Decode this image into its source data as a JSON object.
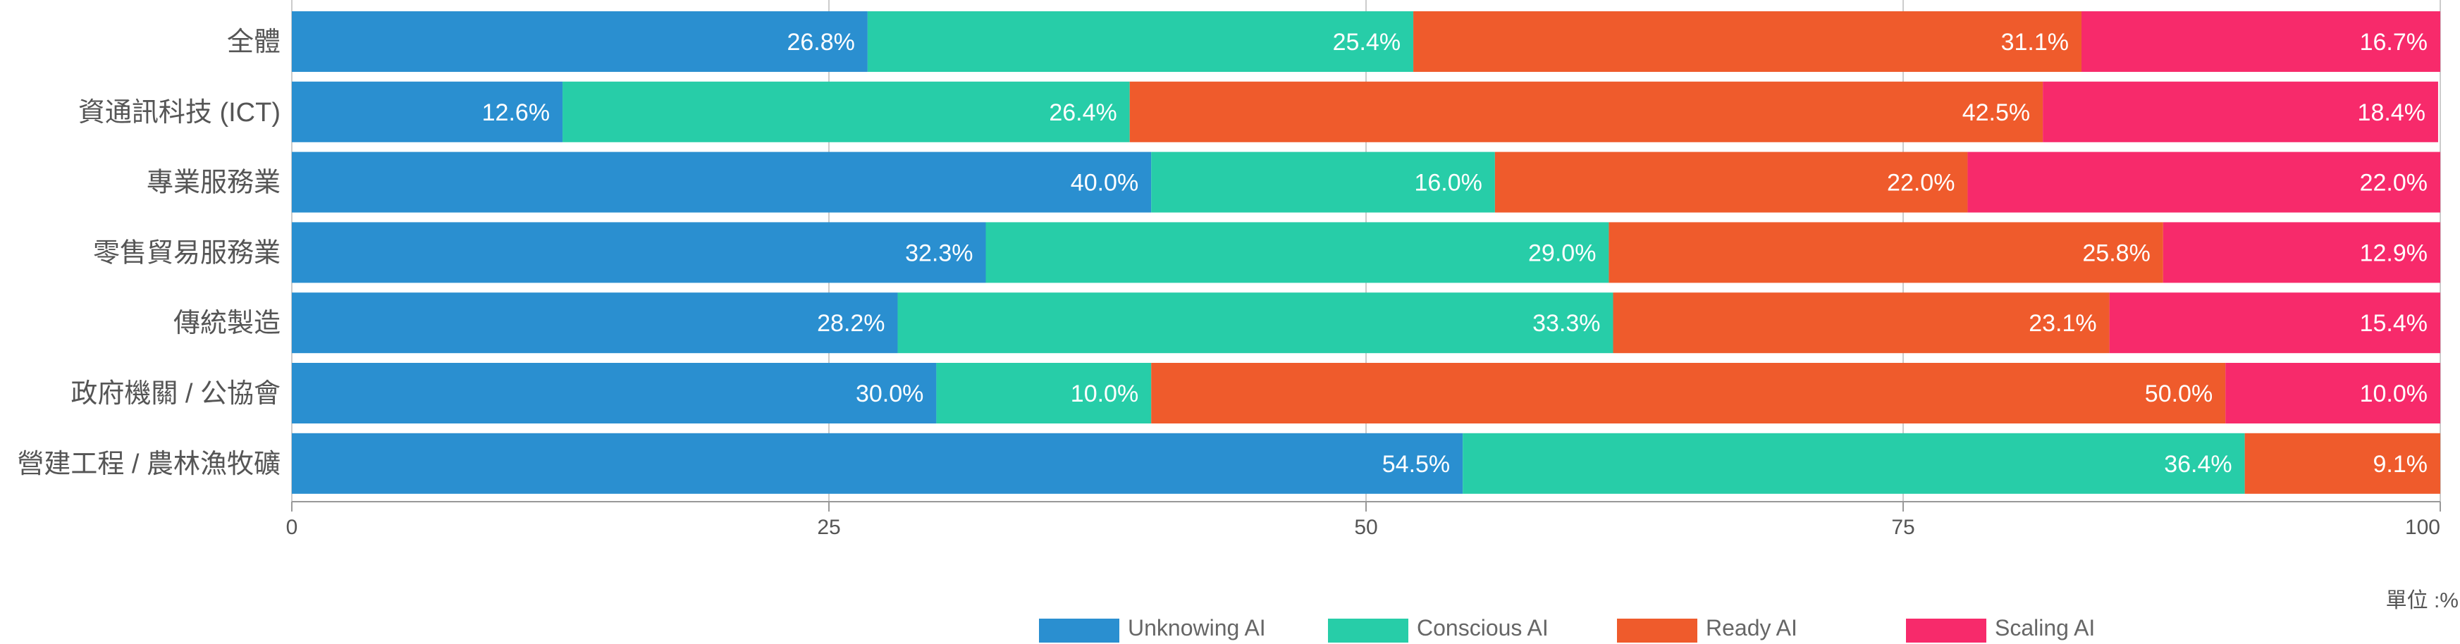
{
  "chart_data": {
    "type": "bar",
    "orientation": "horizontal",
    "stacked": true,
    "categories": [
      "全體",
      "資通訊科技 (ICT)",
      "專業服務業",
      "零售貿易服務業",
      "傳統製造",
      "政府機關 / 公協會",
      "營建工程 / 農林漁牧礦"
    ],
    "series": [
      {
        "name": "Unknowing AI",
        "color": "#2a8fd0",
        "values": [
          26.8,
          12.6,
          40.0,
          32.3,
          28.2,
          30.0,
          54.5
        ],
        "labels": [
          "26.8%",
          "12.6%",
          "40.0%",
          "32.3%",
          "28.2%",
          "30.0%",
          "54.5%"
        ]
      },
      {
        "name": "Conscious AI",
        "color": "#27cda8",
        "values": [
          25.4,
          26.4,
          16.0,
          29.0,
          33.3,
          10.0,
          36.4
        ],
        "labels": [
          "25.4%",
          "26.4%",
          "16.0%",
          "29.0%",
          "33.3%",
          "10.0%",
          "36.4%"
        ]
      },
      {
        "name": "Ready AI",
        "color": "#ef5b2c",
        "values": [
          31.1,
          42.5,
          22.0,
          25.8,
          23.1,
          50.0,
          9.1
        ],
        "labels": [
          "31.1%",
          "42.5%",
          "22.0%",
          "25.8%",
          "23.1%",
          "50.0%",
          "9.1%"
        ]
      },
      {
        "name": "Scaling AI",
        "color": "#f72a6b",
        "values": [
          16.7,
          18.4,
          22.0,
          12.9,
          15.4,
          10.0,
          0
        ],
        "labels": [
          "16.7%",
          "18.4%",
          "22.0%",
          "12.9%",
          "15.4%",
          "10.0%",
          ""
        ]
      }
    ],
    "x_ticks": [
      "0",
      "25",
      "50",
      "75",
      "100"
    ],
    "xlim": [
      0,
      100
    ],
    "grid": true,
    "legend_position": "bottom-center",
    "unit_label": "單位 :%"
  }
}
